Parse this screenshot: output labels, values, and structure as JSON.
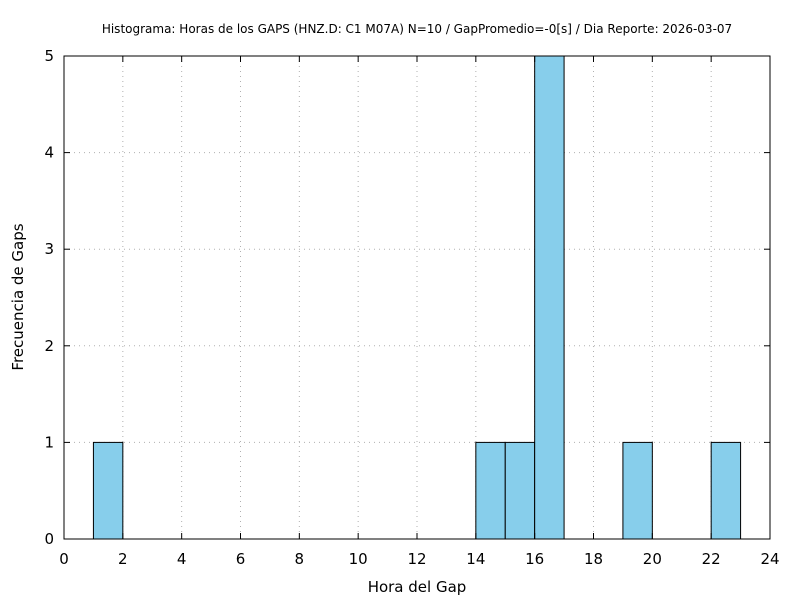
{
  "chart_data": {
    "type": "bar",
    "title": "Histograma: Horas de los GAPS (HNZ.D: C1 M07A) N=10 / GapPromedio=-0[s] / Dia Reporte: 2026-03-07",
    "xlabel": "Hora del Gap",
    "ylabel": "Frecuencia de Gaps",
    "xlim": [
      0,
      24
    ],
    "ylim": [
      0,
      5
    ],
    "x_ticks": [
      0,
      2,
      4,
      6,
      8,
      10,
      12,
      14,
      16,
      18,
      20,
      22,
      24
    ],
    "y_ticks": [
      0,
      1,
      2,
      3,
      4,
      5
    ],
    "grid": true,
    "bar_color": "#87ceeb",
    "bar_edge_color": "#000000",
    "bins": [
      {
        "start": 1,
        "end": 2,
        "count": 1
      },
      {
        "start": 14,
        "end": 15,
        "count": 1
      },
      {
        "start": 15,
        "end": 16,
        "count": 1
      },
      {
        "start": 16,
        "end": 17,
        "count": 5
      },
      {
        "start": 19,
        "end": 20,
        "count": 1
      },
      {
        "start": 22,
        "end": 23,
        "count": 1
      }
    ]
  }
}
